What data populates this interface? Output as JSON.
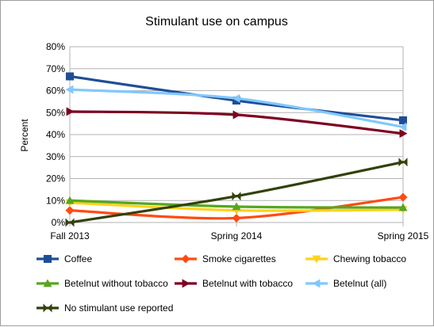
{
  "chart_data": {
    "type": "line",
    "title": "Stimulant use on campus",
    "xlabel": "",
    "ylabel": "Percent",
    "categories": [
      "Fall 2013",
      "Spring 2014",
      "Spring 2015"
    ],
    "ylim": [
      0,
      80
    ],
    "yticks": [
      0,
      10,
      20,
      30,
      40,
      50,
      60,
      70,
      80
    ],
    "ytick_labels": [
      "0%",
      "10%",
      "20%",
      "30%",
      "40%",
      "50%",
      "60%",
      "70%",
      "80%"
    ],
    "grid": "horizontal",
    "legend_position": "bottom",
    "smooth": true,
    "series": [
      {
        "name": "Coffee",
        "values": [
          66.5,
          55.5,
          46.5
        ],
        "color": "#1f4e96",
        "marker": "square"
      },
      {
        "name": "Smoke cigarettes",
        "values": [
          5.5,
          2.0,
          11.5
        ],
        "color": "#ff4b13",
        "marker": "diamond"
      },
      {
        "name": "Chewing tobacco",
        "values": [
          9.0,
          5.5,
          5.8
        ],
        "color": "#ffd21c",
        "marker": "triangle-down"
      },
      {
        "name": "Betelnut without tobacco",
        "values": [
          10.0,
          7.2,
          6.8
        ],
        "color": "#57a61f",
        "marker": "triangle-up"
      },
      {
        "name": "Betelnut with tobacco",
        "values": [
          50.5,
          49.0,
          40.5
        ],
        "color": "#7e0020",
        "marker": "triangle-right"
      },
      {
        "name": "Betelnut (all)",
        "values": [
          60.5,
          56.5,
          43.5
        ],
        "color": "#80c8fe",
        "marker": "triangle-left"
      },
      {
        "name": "No stimulant use reported",
        "values": [
          0,
          12.0,
          27.5
        ],
        "color": "#324109",
        "marker": "bowtie"
      }
    ]
  }
}
